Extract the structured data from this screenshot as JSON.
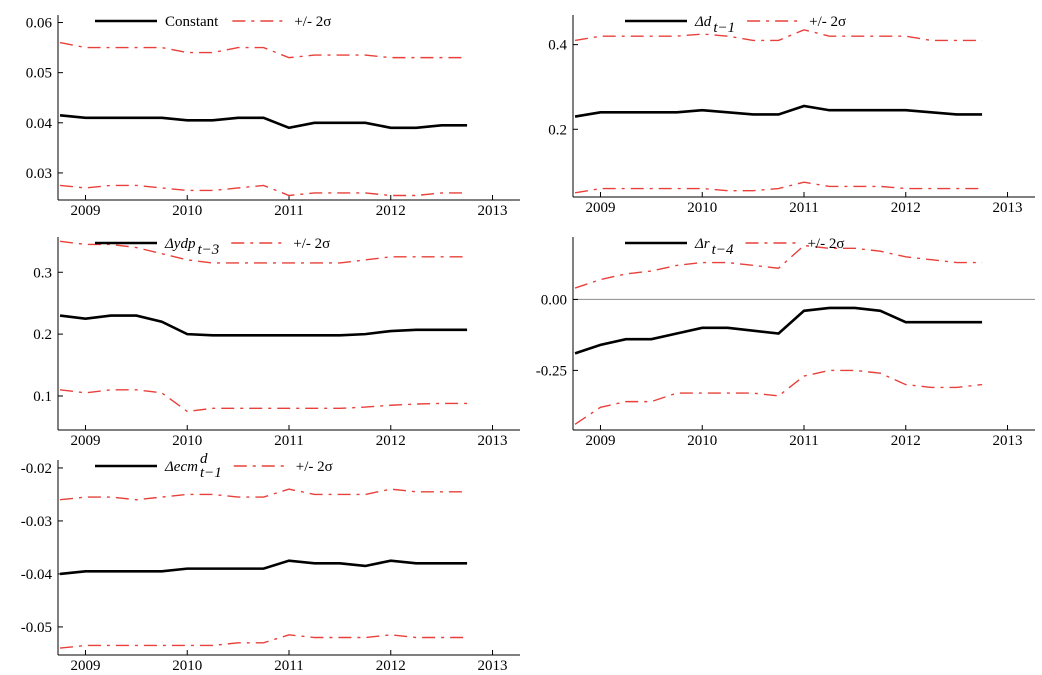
{
  "chart_data": [
    {
      "type": "line",
      "x": [
        2008.75,
        2009,
        2009.25,
        2009.5,
        2009.75,
        2010,
        2010.25,
        2010.5,
        2010.75,
        2011,
        2011.25,
        2011.5,
        2011.75,
        2012,
        2012.25,
        2012.5,
        2012.75
      ],
      "series": [
        {
          "name": "Constant",
          "color": "#000000",
          "values": [
            0.0415,
            0.041,
            0.041,
            0.041,
            0.041,
            0.0405,
            0.0405,
            0.041,
            0.041,
            0.039,
            0.04,
            0.04,
            0.04,
            0.039,
            0.039,
            0.0395,
            0.0395
          ]
        }
      ],
      "band": {
        "name": "+/- 2σ",
        "color": "#e8403a",
        "upper": [
          0.056,
          0.055,
          0.055,
          0.055,
          0.055,
          0.054,
          0.054,
          0.055,
          0.055,
          0.053,
          0.0535,
          0.0535,
          0.0535,
          0.053,
          0.053,
          0.053,
          0.053
        ],
        "lower": [
          0.0275,
          0.027,
          0.0275,
          0.0275,
          0.027,
          0.0265,
          0.0265,
          0.027,
          0.0275,
          0.0255,
          0.026,
          0.026,
          0.026,
          0.0255,
          0.0255,
          0.026,
          0.026
        ]
      },
      "xlim": [
        2008.73,
        2013.27
      ],
      "xticks": [
        2009,
        2010,
        2011,
        2012,
        2013
      ],
      "ylim": [
        0.0246,
        0.0615
      ],
      "yticks": [
        0.03,
        0.04,
        0.05,
        0.06
      ]
    },
    {
      "type": "line",
      "x": [
        2008.75,
        2009,
        2009.25,
        2009.5,
        2009.75,
        2010,
        2010.25,
        2010.5,
        2010.75,
        2011,
        2011.25,
        2011.5,
        2011.75,
        2012,
        2012.25,
        2012.5,
        2012.75
      ],
      "series": [
        {
          "name": "Δd",
          "subscript": "t−1",
          "italic": true,
          "color": "#000000",
          "values": [
            0.23,
            0.24,
            0.24,
            0.24,
            0.24,
            0.245,
            0.24,
            0.235,
            0.235,
            0.255,
            0.245,
            0.245,
            0.245,
            0.245,
            0.24,
            0.235,
            0.235
          ]
        }
      ],
      "band": {
        "name": "+/- 2σ",
        "color": "#e8403a",
        "upper": [
          0.41,
          0.42,
          0.42,
          0.42,
          0.42,
          0.425,
          0.42,
          0.41,
          0.41,
          0.435,
          0.42,
          0.42,
          0.42,
          0.42,
          0.41,
          0.41,
          0.41
        ],
        "lower": [
          0.05,
          0.06,
          0.06,
          0.06,
          0.06,
          0.06,
          0.055,
          0.055,
          0.06,
          0.075,
          0.065,
          0.065,
          0.065,
          0.06,
          0.06,
          0.06,
          0.06
        ]
      },
      "xlim": [
        2008.73,
        2013.27
      ],
      "xticks": [
        2009,
        2010,
        2011,
        2012,
        2013
      ],
      "ylim": [
        0.04,
        0.47
      ],
      "yticks": [
        0.2,
        0.4
      ]
    },
    {
      "type": "line",
      "x": [
        2008.75,
        2009,
        2009.25,
        2009.5,
        2009.75,
        2010,
        2010.25,
        2010.5,
        2010.75,
        2011,
        2011.25,
        2011.5,
        2011.75,
        2012,
        2012.25,
        2012.5,
        2012.75
      ],
      "series": [
        {
          "name": "Δydp",
          "subscript": "t−3",
          "italic": true,
          "color": "#000000",
          "values": [
            0.23,
            0.225,
            0.23,
            0.23,
            0.22,
            0.2,
            0.198,
            0.198,
            0.198,
            0.198,
            0.198,
            0.198,
            0.2,
            0.205,
            0.207,
            0.207,
            0.207
          ]
        }
      ],
      "band": {
        "name": "+/- 2σ",
        "color": "#e8403a",
        "upper": [
          0.35,
          0.345,
          0.345,
          0.34,
          0.33,
          0.32,
          0.315,
          0.315,
          0.315,
          0.315,
          0.315,
          0.315,
          0.32,
          0.325,
          0.325,
          0.325,
          0.325
        ],
        "lower": [
          0.11,
          0.105,
          0.11,
          0.11,
          0.105,
          0.075,
          0.08,
          0.08,
          0.08,
          0.08,
          0.08,
          0.08,
          0.082,
          0.085,
          0.087,
          0.088,
          0.088
        ]
      },
      "xlim": [
        2008.73,
        2013.27
      ],
      "xticks": [
        2009,
        2010,
        2011,
        2012,
        2013
      ],
      "ylim": [
        0.045,
        0.357
      ],
      "yticks": [
        0.1,
        0.2,
        0.3
      ]
    },
    {
      "type": "line",
      "x": [
        2008.75,
        2009,
        2009.25,
        2009.5,
        2009.75,
        2010,
        2010.25,
        2010.5,
        2010.75,
        2011,
        2011.25,
        2011.5,
        2011.75,
        2012,
        2012.25,
        2012.5,
        2012.75
      ],
      "series": [
        {
          "name": "Δr",
          "subscript": "t−4",
          "italic": true,
          "color": "#000000",
          "values": [
            -0.19,
            -0.16,
            -0.14,
            -0.14,
            -0.12,
            -0.1,
            -0.1,
            -0.11,
            -0.12,
            -0.04,
            -0.03,
            -0.03,
            -0.04,
            -0.08,
            -0.08,
            -0.08,
            -0.08
          ]
        }
      ],
      "band": {
        "name": "+/- 2σ",
        "color": "#e8403a",
        "upper": [
          0.04,
          0.07,
          0.09,
          0.1,
          0.12,
          0.13,
          0.13,
          0.12,
          0.11,
          0.19,
          0.18,
          0.18,
          0.17,
          0.15,
          0.14,
          0.13,
          0.13
        ],
        "lower": [
          -0.44,
          -0.38,
          -0.36,
          -0.36,
          -0.33,
          -0.33,
          -0.33,
          -0.33,
          -0.34,
          -0.27,
          -0.25,
          -0.25,
          -0.26,
          -0.3,
          -0.31,
          -0.31,
          -0.3
        ]
      },
      "xlim": [
        2008.73,
        2013.27
      ],
      "xticks": [
        2009,
        2010,
        2011,
        2012,
        2013
      ],
      "ylim": [
        -0.46,
        0.22
      ],
      "yticks": [
        {
          "value": 0,
          "label": "0.00"
        },
        {
          "value": -0.25,
          "label": "-0.25"
        }
      ],
      "zero_line": true
    },
    {
      "type": "line",
      "x": [
        2008.75,
        2009,
        2009.25,
        2009.5,
        2009.75,
        2010,
        2010.25,
        2010.5,
        2010.75,
        2011,
        2011.25,
        2011.5,
        2011.75,
        2012,
        2012.25,
        2012.5,
        2012.75
      ],
      "series": [
        {
          "name": "Δecm",
          "superscript": "d",
          "subscript": "t−1",
          "italic": true,
          "color": "#000000",
          "values": [
            -0.04,
            -0.0395,
            -0.0395,
            -0.0395,
            -0.0395,
            -0.039,
            -0.039,
            -0.039,
            -0.039,
            -0.0375,
            -0.038,
            -0.038,
            -0.0385,
            -0.0375,
            -0.038,
            -0.038,
            -0.038
          ]
        }
      ],
      "band": {
        "name": "+/- 2σ",
        "color": "#e8403a",
        "upper": [
          -0.026,
          -0.0255,
          -0.0255,
          -0.026,
          -0.0255,
          -0.025,
          -0.025,
          -0.0255,
          -0.0255,
          -0.024,
          -0.025,
          -0.025,
          -0.025,
          -0.024,
          -0.0245,
          -0.0245,
          -0.0245
        ],
        "lower": [
          -0.054,
          -0.0535,
          -0.0535,
          -0.0535,
          -0.0535,
          -0.0535,
          -0.0535,
          -0.053,
          -0.053,
          -0.0515,
          -0.052,
          -0.052,
          -0.052,
          -0.0515,
          -0.052,
          -0.052,
          -0.052
        ]
      },
      "xlim": [
        2008.73,
        2013.27
      ],
      "xticks": [
        2009,
        2010,
        2011,
        2012,
        2013
      ],
      "ylim": [
        -0.0553,
        -0.0185
      ],
      "yticks": [
        -0.02,
        -0.03,
        -0.04,
        -0.05
      ]
    }
  ]
}
